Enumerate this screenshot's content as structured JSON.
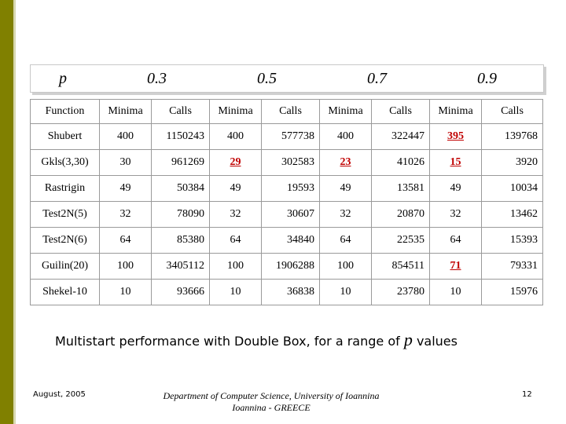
{
  "header": {
    "p_label": "p",
    "p_values": [
      "0.3",
      "0.5",
      "0.7",
      "0.9"
    ]
  },
  "table": {
    "columns": [
      "Function",
      "Minima",
      "Calls",
      "Minima",
      "Calls",
      "Minima",
      "Calls",
      "Minima",
      "Calls"
    ],
    "rows": [
      {
        "name": "Shubert",
        "cells": [
          "400",
          "1150243",
          "400",
          "577738",
          "400",
          "322447",
          "395",
          "139768"
        ],
        "highlight": [
          6
        ]
      },
      {
        "name": "Gkls(3,30)",
        "cells": [
          "30",
          "961269",
          "29",
          "302583",
          "23",
          "41026",
          "15",
          "3920"
        ],
        "highlight": [
          2,
          4,
          6
        ]
      },
      {
        "name": "Rastrigin",
        "cells": [
          "49",
          "50384",
          "49",
          "19593",
          "49",
          "13581",
          "49",
          "10034"
        ],
        "highlight": []
      },
      {
        "name": "Test2N(5)",
        "cells": [
          "32",
          "78090",
          "32",
          "30607",
          "32",
          "20870",
          "32",
          "13462"
        ],
        "highlight": []
      },
      {
        "name": "Test2N(6)",
        "cells": [
          "64",
          "85380",
          "64",
          "34840",
          "64",
          "22535",
          "64",
          "15393"
        ],
        "highlight": []
      },
      {
        "name": "Guilin(20)",
        "cells": [
          "100",
          "3405112",
          "100",
          "1906288",
          "100",
          "854511",
          "71",
          "79331"
        ],
        "highlight": [
          6
        ]
      },
      {
        "name": "Shekel-10",
        "cells": [
          "10",
          "93666",
          "10",
          "36838",
          "10",
          "23780",
          "10",
          "15976"
        ],
        "highlight": []
      }
    ]
  },
  "caption": {
    "text_before": "Multistart performance with Double Box, for a range of",
    "p_symbol": "p",
    "text_after": "values"
  },
  "footer": {
    "date": "August, 2005",
    "dept_line1": "Department of Computer Science, University of Ioannina",
    "dept_line2": "Ioannina - GREECE",
    "page": "12"
  },
  "colors": {
    "sidebar": "#808000",
    "highlight": "#c00000"
  }
}
